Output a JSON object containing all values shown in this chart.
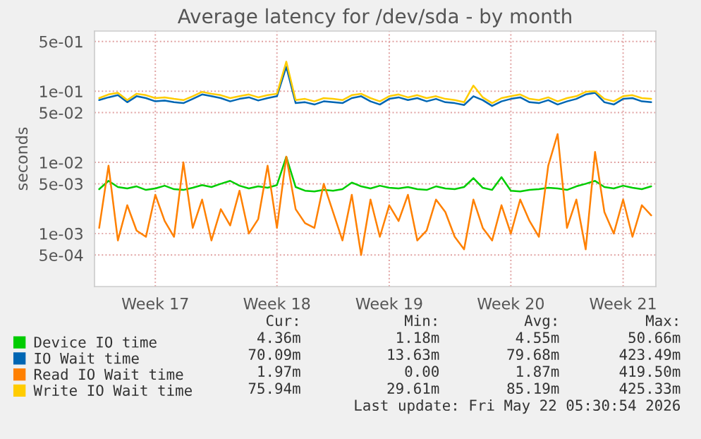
{
  "chart_data": {
    "type": "line",
    "title": "Average latency for /dev/sda - by month",
    "ylabel": "seconds",
    "log": "y",
    "grid": true,
    "legend": "bottom left",
    "ylim": [
      0.00018,
      0.7
    ],
    "yticks": [
      {
        "value": 0.5,
        "label": "5e-01"
      },
      {
        "value": 0.1,
        "label": "1e-01"
      },
      {
        "value": 0.05,
        "label": "5e-02"
      },
      {
        "value": 0.01,
        "label": "1e-02"
      },
      {
        "value": 0.005,
        "label": "5e-03"
      },
      {
        "value": 0.001,
        "label": "1e-03"
      },
      {
        "value": 0.0005,
        "label": "5e-04"
      }
    ],
    "categories": [
      null,
      null,
      null,
      null,
      null,
      null,
      "Week 17",
      null,
      null,
      null,
      null,
      null,
      null,
      null,
      null,
      null,
      null,
      null,
      null,
      "Week 18",
      null,
      null,
      null,
      null,
      null,
      null,
      null,
      null,
      null,
      null,
      null,
      "Week 19",
      null,
      null,
      null,
      null,
      null,
      null,
      null,
      null,
      null,
      null,
      null,
      null,
      "Week 20",
      null,
      null,
      null,
      null,
      null,
      null,
      null,
      null,
      null,
      null,
      null,
      "Week 21",
      null,
      null,
      null
    ],
    "series": [
      {
        "name": "Device IO time",
        "color": "#00cc00",
        "values": [
          0.0042,
          0.0055,
          0.0045,
          0.0043,
          0.0046,
          0.0041,
          0.0043,
          0.0047,
          0.0042,
          0.0041,
          0.0044,
          0.0048,
          0.0045,
          0.005,
          0.0055,
          0.0047,
          0.0043,
          0.0046,
          0.0044,
          0.0048,
          0.012,
          0.0045,
          0.004,
          0.0039,
          0.0041,
          0.004,
          0.0042,
          0.0052,
          0.0046,
          0.0043,
          0.0047,
          0.0044,
          0.0043,
          0.0045,
          0.0042,
          0.0041,
          0.0046,
          0.0043,
          0.0042,
          0.0045,
          0.006,
          0.0044,
          0.0041,
          0.0062,
          0.004,
          0.0039,
          0.0041,
          0.0042,
          0.0044,
          0.0043,
          0.0041,
          0.0046,
          0.005,
          0.0055,
          0.0045,
          0.0043,
          0.0047,
          0.0044,
          0.0042,
          0.0046
        ]
      },
      {
        "name": "IO Wait time",
        "color": "#0066b3",
        "values": [
          0.075,
          0.082,
          0.088,
          0.07,
          0.085,
          0.08,
          0.072,
          0.074,
          0.07,
          0.068,
          0.078,
          0.09,
          0.085,
          0.08,
          0.072,
          0.078,
          0.082,
          0.074,
          0.08,
          0.085,
          0.22,
          0.068,
          0.07,
          0.065,
          0.072,
          0.07,
          0.068,
          0.08,
          0.085,
          0.072,
          0.065,
          0.078,
          0.082,
          0.075,
          0.08,
          0.072,
          0.078,
          0.07,
          0.068,
          0.064,
          0.085,
          0.075,
          0.062,
          0.072,
          0.078,
          0.082,
          0.07,
          0.068,
          0.075,
          0.065,
          0.072,
          0.078,
          0.09,
          0.095,
          0.07,
          0.065,
          0.078,
          0.08,
          0.072,
          0.07
        ]
      },
      {
        "name": "Read IO Wait time",
        "color": "#ff8000",
        "values": [
          0.0012,
          0.009,
          0.0008,
          0.0025,
          0.0011,
          0.0009,
          0.0035,
          0.0015,
          0.0009,
          0.01,
          0.0012,
          0.003,
          0.0008,
          0.0022,
          0.0013,
          0.004,
          0.001,
          0.0016,
          0.009,
          0.0012,
          0.012,
          0.0022,
          0.0014,
          0.0012,
          0.005,
          0.002,
          0.0008,
          0.0035,
          0.0005,
          0.003,
          0.0009,
          0.0025,
          0.0015,
          0.0035,
          0.0008,
          0.0011,
          0.003,
          0.002,
          0.0009,
          0.0006,
          0.003,
          0.0012,
          0.0008,
          0.0025,
          0.001,
          0.003,
          0.0015,
          0.0009,
          0.009,
          0.025,
          0.0012,
          0.003,
          0.0006,
          0.014,
          0.002,
          0.001,
          0.003,
          0.0009,
          0.0025,
          0.0018
        ]
      },
      {
        "name": "Write IO Wait time",
        "color": "#ffcc00",
        "values": [
          0.08,
          0.09,
          0.095,
          0.075,
          0.092,
          0.088,
          0.08,
          0.082,
          0.078,
          0.075,
          0.085,
          0.098,
          0.092,
          0.088,
          0.08,
          0.085,
          0.09,
          0.082,
          0.088,
          0.092,
          0.26,
          0.075,
          0.078,
          0.072,
          0.08,
          0.078,
          0.075,
          0.088,
          0.092,
          0.08,
          0.072,
          0.085,
          0.09,
          0.082,
          0.088,
          0.08,
          0.085,
          0.078,
          0.075,
          0.07,
          0.12,
          0.082,
          0.068,
          0.08,
          0.085,
          0.09,
          0.078,
          0.075,
          0.082,
          0.072,
          0.08,
          0.085,
          0.098,
          0.1,
          0.078,
          0.072,
          0.085,
          0.088,
          0.08,
          0.078
        ]
      }
    ],
    "annotations": [
      "Cur:",
      "Min:",
      "Avg:",
      "Max:",
      "4.36m",
      "1.18m",
      "4.55m",
      "50.66m",
      "70.09m",
      "13.63m",
      "79.68m",
      "423.49m",
      "1.97m",
      "0.00",
      "1.87m",
      "419.50m",
      "75.94m",
      "29.61m",
      "85.19m",
      "425.33m",
      "Last update: Fri May 22 05:30:54 2026"
    ]
  }
}
